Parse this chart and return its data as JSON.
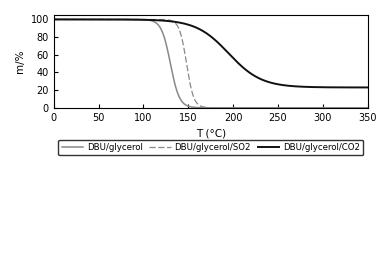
{
  "title": "",
  "xlabel": "T (°C)",
  "ylabel": "m/%",
  "xlim": [
    0,
    350
  ],
  "ylim": [
    0,
    105
  ],
  "xticks": [
    0,
    50,
    100,
    150,
    200,
    250,
    300,
    350
  ],
  "yticks": [
    0,
    20,
    40,
    60,
    80,
    100
  ],
  "legend_labels": [
    "DBU/glycerol",
    "DBU/glycerol/SO2",
    "DBU/glycerol/CO2"
  ],
  "background_color": "#ffffff",
  "line_color_gray": "#888888",
  "line_color_black": "#111111",
  "curve_dbu_glycerol": {
    "x0": 130,
    "k": 0.2,
    "x_flat_end": 30,
    "y_end": 0
  },
  "curve_dbu_so2": {
    "x0": 148,
    "k": 0.25,
    "x_flat_end": 50,
    "y_end": 0
  },
  "curve_dbu_co2": {
    "x0": 195,
    "k": 0.055,
    "x_flat_end": 30,
    "y_scale": 77,
    "y_offset": 23
  }
}
